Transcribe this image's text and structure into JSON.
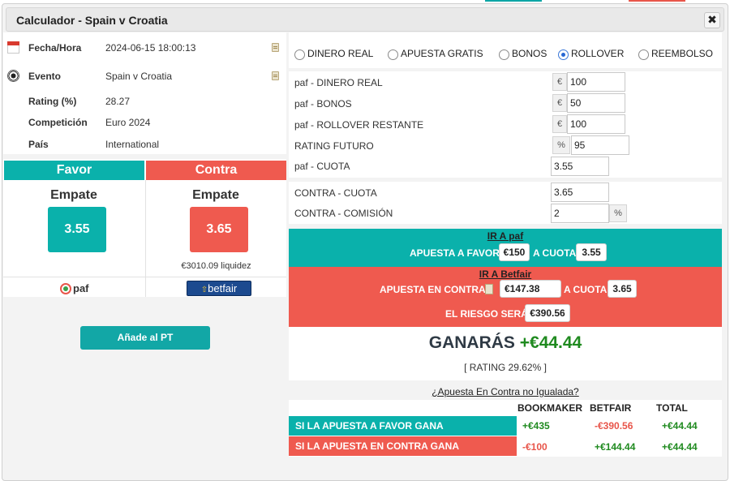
{
  "dialog": {
    "title": "Calculador - Spain v Croatia",
    "close_glyph": "✖"
  },
  "event_info": {
    "fecha_label": "Fecha/Hora",
    "fecha_value": "2024-06-15 18:00:13",
    "evento_label": "Evento",
    "evento_value": "Spain v Croatia",
    "rating_label": "Rating (%)",
    "rating_value": "28.27",
    "competicion_label": "Competición",
    "competicion_value": "Euro 2024",
    "pais_label": "País",
    "pais_value": "International"
  },
  "sides": {
    "favor_title": "Favor",
    "contra_title": "Contra",
    "favor_outcome": "Empate",
    "contra_outcome": "Empate",
    "favor_odds": "3.55",
    "contra_odds": "3.65",
    "liquidity": "€3010.09 liquidez",
    "bookmaker_logo_text": "paf",
    "exchange_logo_text": "betfair"
  },
  "add_button": "Añade al PT",
  "bet_types": {
    "options": [
      "DINERO REAL",
      "APUESTA GRATIS",
      "BONOS",
      "ROLLOVER",
      "REEMBOLSO"
    ],
    "selected": "ROLLOVER"
  },
  "form": {
    "dinero_real_label": "paf - DINERO REAL",
    "dinero_real_value": "100",
    "bonos_label": "paf - BONOS",
    "bonos_value": "50",
    "rollover_label": "paf - ROLLOVER RESTANTE",
    "rollover_value": "100",
    "rating_futuro_label": "RATING FUTURO",
    "rating_futuro_value": "95",
    "cuota_label": "paf - CUOTA",
    "cuota_value": "3.55",
    "contra_cuota_label": "CONTRA - CUOTA",
    "contra_cuota_value": "3.65",
    "contra_comision_label": "CONTRA - COMISIÓN",
    "contra_comision_value": "2",
    "currency": "€",
    "percent": "%"
  },
  "favor_block": {
    "link": "IR A paf",
    "stake_label": "APUESTA A FAVOR",
    "stake_value": "€150",
    "odds_label": "A CUOTA",
    "odds_value": "3.55"
  },
  "contra_block": {
    "link": "IR A Betfair",
    "stake_label": "APUESTA EN CONTRA",
    "stake_value": "€147.38",
    "odds_label": "A CUOTA",
    "odds_value": "3.65",
    "risk_label": "EL RIESGO SERÁ",
    "risk_value": "€390.56"
  },
  "result": {
    "label": "GANARÁS",
    "amount": "+€44.44",
    "rating_note": "[ RATING 29.62% ]"
  },
  "unmatched_link": "¿Apuesta En Contra no Igualada?",
  "summary_table": {
    "headers": [
      "BOOKMAKER",
      "BETFAIR",
      "TOTAL"
    ],
    "rows": [
      {
        "label": "SI LA APUESTA A FAVOR GANA",
        "bookmaker": "+€435",
        "betfair": "-€390.56",
        "total": "+€44.44"
      },
      {
        "label": "SI LA APUESTA EN CONTRA GANA",
        "bookmaker": "-€100",
        "betfair": "+€144.44",
        "total": "+€44.44"
      }
    ]
  },
  "colors": {
    "favor": "#0ab1ab",
    "contra": "#ef5a4f",
    "positive": "#1f8a1f",
    "negative": "#e8554a"
  }
}
